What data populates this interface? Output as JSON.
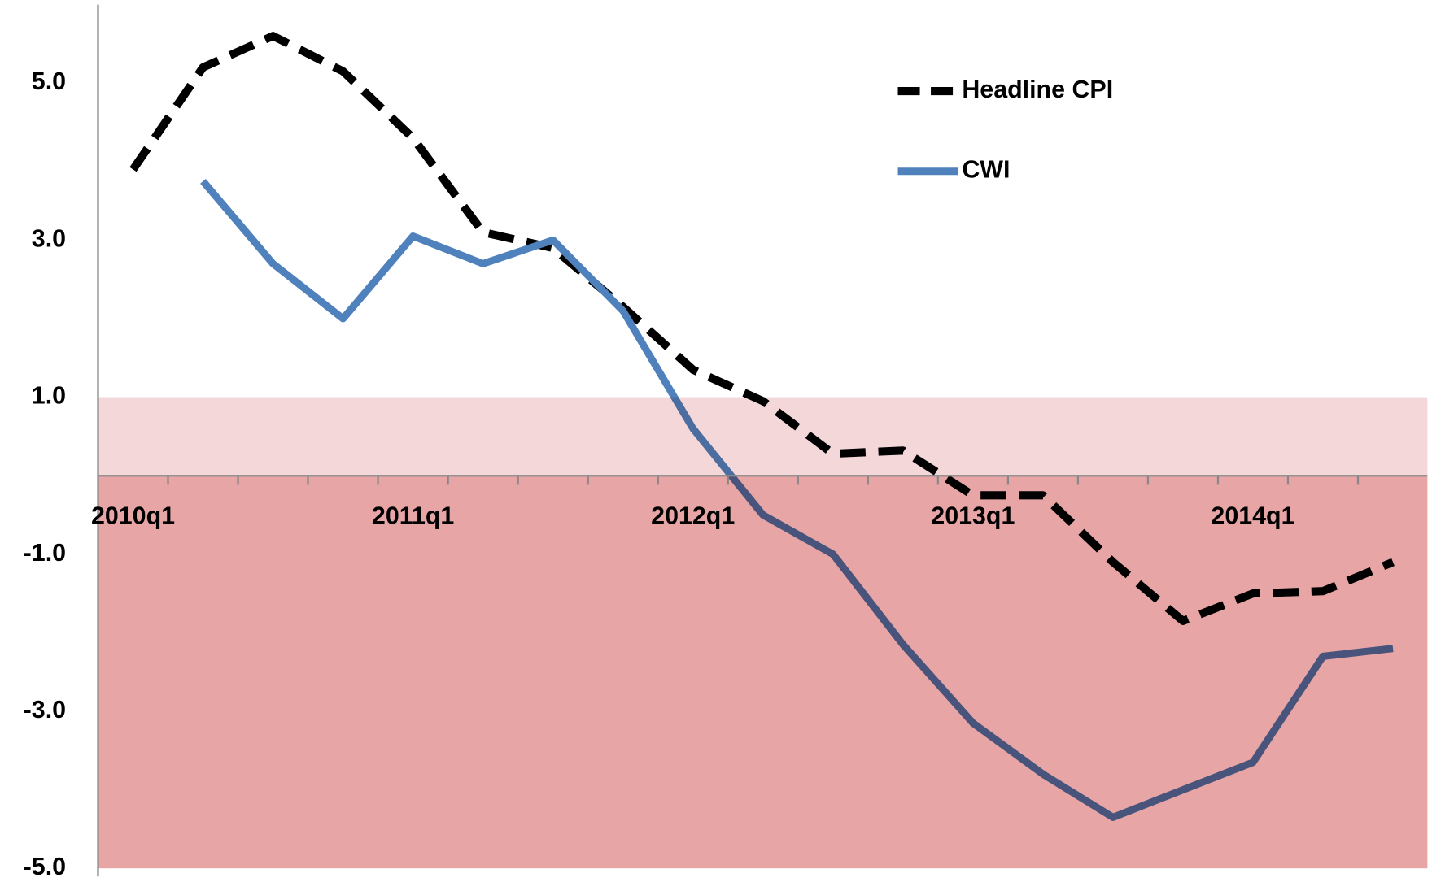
{
  "chart_data": {
    "type": "line",
    "categories": [
      "2010q1",
      null,
      null,
      null,
      "2011q1",
      null,
      null,
      null,
      "2012q1",
      null,
      null,
      null,
      "2013q1",
      null,
      null,
      null,
      "2014q1",
      null,
      null
    ],
    "series": [
      {
        "name": "Headline CPI",
        "color": "#000000",
        "dashed": true,
        "values": [
          3.9,
          5.2,
          5.6,
          5.15,
          4.3,
          3.1,
          2.9,
          2.15,
          1.35,
          0.95,
          0.28,
          0.32,
          -0.25,
          -0.25,
          -1.1,
          -1.85,
          -1.5,
          -1.47,
          -1.1
        ]
      },
      {
        "name": "CWI",
        "color": "#4f81bd",
        "dashed": false,
        "values": [
          null,
          3.75,
          2.7,
          2.0,
          3.05,
          2.7,
          3.0,
          2.1,
          0.6,
          -0.5,
          -1.0,
          -2.15,
          -3.15,
          -3.8,
          -4.35,
          -4.0,
          -3.65,
          -2.3,
          -2.2
        ]
      }
    ],
    "ylim": [
      -5,
      6
    ],
    "yticks": [
      {
        "value": -5,
        "label": "-5.0"
      },
      {
        "value": -3,
        "label": "-3.0"
      },
      {
        "value": -1,
        "label": "-1.0"
      },
      {
        "value": 1,
        "label": "1.0"
      },
      {
        "value": 3,
        "label": "3.0"
      },
      {
        "value": 5,
        "label": "5.0"
      }
    ],
    "shaded_ranges": [
      {
        "from": 0,
        "to": 1,
        "color": "#f4d7d8"
      },
      {
        "from": -5,
        "to": 0,
        "color": "#e8a5a6"
      }
    ],
    "legend": "top-right"
  }
}
